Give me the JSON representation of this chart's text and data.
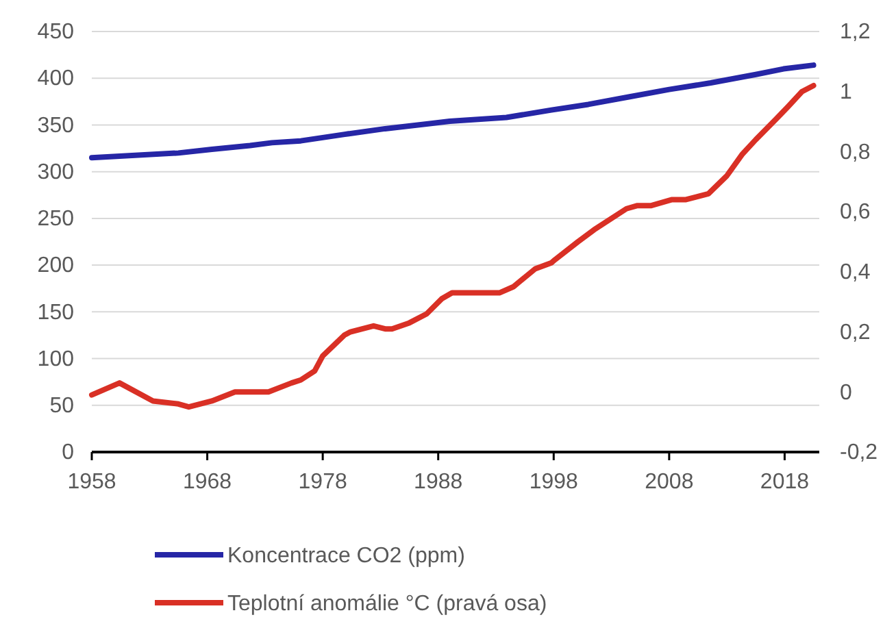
{
  "chart_data": {
    "type": "line",
    "x": [
      1958,
      1960.4,
      1963.3,
      1965.5,
      1966.4,
      1968.4,
      1970.4,
      1971.7,
      1973.3,
      1975.3,
      1976.1,
      1977.3,
      1978,
      1979.9,
      1980.4,
      1982.4,
      1983.4,
      1984,
      1985.5,
      1987,
      1988.3,
      1989.2,
      1993.3,
      1994.5,
      1996.4,
      1997.8,
      1998.1,
      2000.1,
      2001.5,
      2004.3,
      2005.2,
      2006.4,
      2008.2,
      2009.4,
      2011.4,
      2013,
      2014.3,
      2015.5,
      2017.3,
      2018.3,
      2019.5,
      2020.5
    ],
    "series": [
      {
        "name": "Koncentrace CO2 (ppm)",
        "color": "#2626a6",
        "x": [
          1958,
          1965.5,
          1968.4,
          1971.7,
          1973.6,
          1976.1,
          1979.9,
          1983.4,
          1987,
          1989,
          1993.9,
          1997.8,
          2001,
          2004.5,
          2008,
          2011.6,
          2015.5,
          2017.9,
          2020.5
        ],
        "values": [
          315,
          320,
          324,
          328,
          331,
          333,
          340,
          346,
          351,
          354,
          358,
          366,
          372,
          380,
          388,
          395,
          404,
          410,
          414
        ]
      },
      {
        "name": "Teplotní anomálie °C (pravá osa)",
        "color": "#d93025",
        "axis": "y2",
        "values": [
          -0.01,
          0.03,
          -0.03,
          -0.04,
          -0.05,
          -0.03,
          0.0,
          0.0,
          0.0,
          0.03,
          0.04,
          0.07,
          0.12,
          0.19,
          0.2,
          0.22,
          0.21,
          0.21,
          0.23,
          0.26,
          0.31,
          0.33,
          0.33,
          0.35,
          0.41,
          0.43,
          0.44,
          0.5,
          0.54,
          0.61,
          0.62,
          0.62,
          0.64,
          0.64,
          0.66,
          0.72,
          0.79,
          0.84,
          0.91,
          0.95,
          1.0,
          1.02
        ]
      }
    ],
    "xlim": [
      1958,
      2021
    ],
    "xticks": [
      1958,
      1968,
      1978,
      1988,
      1998,
      2008,
      2018
    ],
    "ylim": [
      0,
      450
    ],
    "yticks": [
      0,
      50,
      100,
      150,
      200,
      250,
      300,
      350,
      400,
      450
    ],
    "y2lim": [
      -0.2,
      1.2
    ],
    "y2ticks": [
      {
        "value": -0.2,
        "label": "-0,2"
      },
      0,
      {
        "value": 0.2,
        "label": "0,2"
      },
      {
        "value": 0.4,
        "label": "0,4"
      },
      {
        "value": 0.6,
        "label": "0,6"
      },
      {
        "value": 0.8,
        "label": "0,8"
      },
      1,
      {
        "value": 1.2,
        "label": "1,2"
      }
    ],
    "grid": "y",
    "legend": "bottom",
    "marker": "none",
    "line_style": "solid"
  }
}
